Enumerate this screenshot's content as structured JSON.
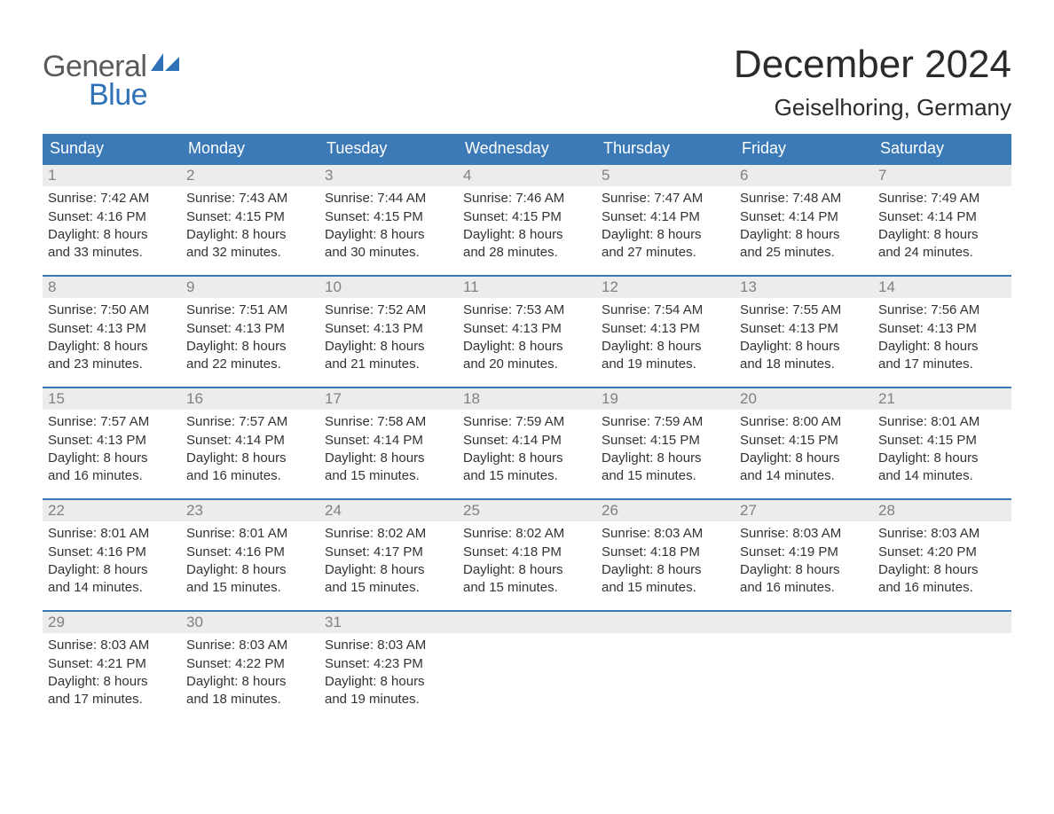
{
  "brand": {
    "word1": "General",
    "word2": "Blue",
    "word1_color": "#5a5a5a",
    "word2_color": "#2f72b7",
    "icon_color": "#2f72b7"
  },
  "header": {
    "title": "December 2024",
    "location": "Geiselhoring, Germany",
    "title_fontsize": 44,
    "location_fontsize": 26,
    "text_color": "#2b2b2b"
  },
  "calendar": {
    "header_bg": "#3b79b7",
    "header_text_color": "#ffffff",
    "row_divider_color": "#3b79b7",
    "daynum_bg": "#ececec",
    "daynum_color": "#808080",
    "body_text_color": "#333333",
    "background": "#ffffff",
    "weekdays": [
      "Sunday",
      "Monday",
      "Tuesday",
      "Wednesday",
      "Thursday",
      "Friday",
      "Saturday"
    ],
    "weeks": [
      [
        {
          "n": "1",
          "sunrise": "Sunrise: 7:42 AM",
          "sunset": "Sunset: 4:16 PM",
          "d1": "Daylight: 8 hours",
          "d2": "and 33 minutes."
        },
        {
          "n": "2",
          "sunrise": "Sunrise: 7:43 AM",
          "sunset": "Sunset: 4:15 PM",
          "d1": "Daylight: 8 hours",
          "d2": "and 32 minutes."
        },
        {
          "n": "3",
          "sunrise": "Sunrise: 7:44 AM",
          "sunset": "Sunset: 4:15 PM",
          "d1": "Daylight: 8 hours",
          "d2": "and 30 minutes."
        },
        {
          "n": "4",
          "sunrise": "Sunrise: 7:46 AM",
          "sunset": "Sunset: 4:15 PM",
          "d1": "Daylight: 8 hours",
          "d2": "and 28 minutes."
        },
        {
          "n": "5",
          "sunrise": "Sunrise: 7:47 AM",
          "sunset": "Sunset: 4:14 PM",
          "d1": "Daylight: 8 hours",
          "d2": "and 27 minutes."
        },
        {
          "n": "6",
          "sunrise": "Sunrise: 7:48 AM",
          "sunset": "Sunset: 4:14 PM",
          "d1": "Daylight: 8 hours",
          "d2": "and 25 minutes."
        },
        {
          "n": "7",
          "sunrise": "Sunrise: 7:49 AM",
          "sunset": "Sunset: 4:14 PM",
          "d1": "Daylight: 8 hours",
          "d2": "and 24 minutes."
        }
      ],
      [
        {
          "n": "8",
          "sunrise": "Sunrise: 7:50 AM",
          "sunset": "Sunset: 4:13 PM",
          "d1": "Daylight: 8 hours",
          "d2": "and 23 minutes."
        },
        {
          "n": "9",
          "sunrise": "Sunrise: 7:51 AM",
          "sunset": "Sunset: 4:13 PM",
          "d1": "Daylight: 8 hours",
          "d2": "and 22 minutes."
        },
        {
          "n": "10",
          "sunrise": "Sunrise: 7:52 AM",
          "sunset": "Sunset: 4:13 PM",
          "d1": "Daylight: 8 hours",
          "d2": "and 21 minutes."
        },
        {
          "n": "11",
          "sunrise": "Sunrise: 7:53 AM",
          "sunset": "Sunset: 4:13 PM",
          "d1": "Daylight: 8 hours",
          "d2": "and 20 minutes."
        },
        {
          "n": "12",
          "sunrise": "Sunrise: 7:54 AM",
          "sunset": "Sunset: 4:13 PM",
          "d1": "Daylight: 8 hours",
          "d2": "and 19 minutes."
        },
        {
          "n": "13",
          "sunrise": "Sunrise: 7:55 AM",
          "sunset": "Sunset: 4:13 PM",
          "d1": "Daylight: 8 hours",
          "d2": "and 18 minutes."
        },
        {
          "n": "14",
          "sunrise": "Sunrise: 7:56 AM",
          "sunset": "Sunset: 4:13 PM",
          "d1": "Daylight: 8 hours",
          "d2": "and 17 minutes."
        }
      ],
      [
        {
          "n": "15",
          "sunrise": "Sunrise: 7:57 AM",
          "sunset": "Sunset: 4:13 PM",
          "d1": "Daylight: 8 hours",
          "d2": "and 16 minutes."
        },
        {
          "n": "16",
          "sunrise": "Sunrise: 7:57 AM",
          "sunset": "Sunset: 4:14 PM",
          "d1": "Daylight: 8 hours",
          "d2": "and 16 minutes."
        },
        {
          "n": "17",
          "sunrise": "Sunrise: 7:58 AM",
          "sunset": "Sunset: 4:14 PM",
          "d1": "Daylight: 8 hours",
          "d2": "and 15 minutes."
        },
        {
          "n": "18",
          "sunrise": "Sunrise: 7:59 AM",
          "sunset": "Sunset: 4:14 PM",
          "d1": "Daylight: 8 hours",
          "d2": "and 15 minutes."
        },
        {
          "n": "19",
          "sunrise": "Sunrise: 7:59 AM",
          "sunset": "Sunset: 4:15 PM",
          "d1": "Daylight: 8 hours",
          "d2": "and 15 minutes."
        },
        {
          "n": "20",
          "sunrise": "Sunrise: 8:00 AM",
          "sunset": "Sunset: 4:15 PM",
          "d1": "Daylight: 8 hours",
          "d2": "and 14 minutes."
        },
        {
          "n": "21",
          "sunrise": "Sunrise: 8:01 AM",
          "sunset": "Sunset: 4:15 PM",
          "d1": "Daylight: 8 hours",
          "d2": "and 14 minutes."
        }
      ],
      [
        {
          "n": "22",
          "sunrise": "Sunrise: 8:01 AM",
          "sunset": "Sunset: 4:16 PM",
          "d1": "Daylight: 8 hours",
          "d2": "and 14 minutes."
        },
        {
          "n": "23",
          "sunrise": "Sunrise: 8:01 AM",
          "sunset": "Sunset: 4:16 PM",
          "d1": "Daylight: 8 hours",
          "d2": "and 15 minutes."
        },
        {
          "n": "24",
          "sunrise": "Sunrise: 8:02 AM",
          "sunset": "Sunset: 4:17 PM",
          "d1": "Daylight: 8 hours",
          "d2": "and 15 minutes."
        },
        {
          "n": "25",
          "sunrise": "Sunrise: 8:02 AM",
          "sunset": "Sunset: 4:18 PM",
          "d1": "Daylight: 8 hours",
          "d2": "and 15 minutes."
        },
        {
          "n": "26",
          "sunrise": "Sunrise: 8:03 AM",
          "sunset": "Sunset: 4:18 PM",
          "d1": "Daylight: 8 hours",
          "d2": "and 15 minutes."
        },
        {
          "n": "27",
          "sunrise": "Sunrise: 8:03 AM",
          "sunset": "Sunset: 4:19 PM",
          "d1": "Daylight: 8 hours",
          "d2": "and 16 minutes."
        },
        {
          "n": "28",
          "sunrise": "Sunrise: 8:03 AM",
          "sunset": "Sunset: 4:20 PM",
          "d1": "Daylight: 8 hours",
          "d2": "and 16 minutes."
        }
      ],
      [
        {
          "n": "29",
          "sunrise": "Sunrise: 8:03 AM",
          "sunset": "Sunset: 4:21 PM",
          "d1": "Daylight: 8 hours",
          "d2": "and 17 minutes."
        },
        {
          "n": "30",
          "sunrise": "Sunrise: 8:03 AM",
          "sunset": "Sunset: 4:22 PM",
          "d1": "Daylight: 8 hours",
          "d2": "and 18 minutes."
        },
        {
          "n": "31",
          "sunrise": "Sunrise: 8:03 AM",
          "sunset": "Sunset: 4:23 PM",
          "d1": "Daylight: 8 hours",
          "d2": "and 19 minutes."
        },
        {
          "n": "",
          "sunrise": "",
          "sunset": "",
          "d1": "",
          "d2": ""
        },
        {
          "n": "",
          "sunrise": "",
          "sunset": "",
          "d1": "",
          "d2": ""
        },
        {
          "n": "",
          "sunrise": "",
          "sunset": "",
          "d1": "",
          "d2": ""
        },
        {
          "n": "",
          "sunrise": "",
          "sunset": "",
          "d1": "",
          "d2": ""
        }
      ]
    ]
  }
}
